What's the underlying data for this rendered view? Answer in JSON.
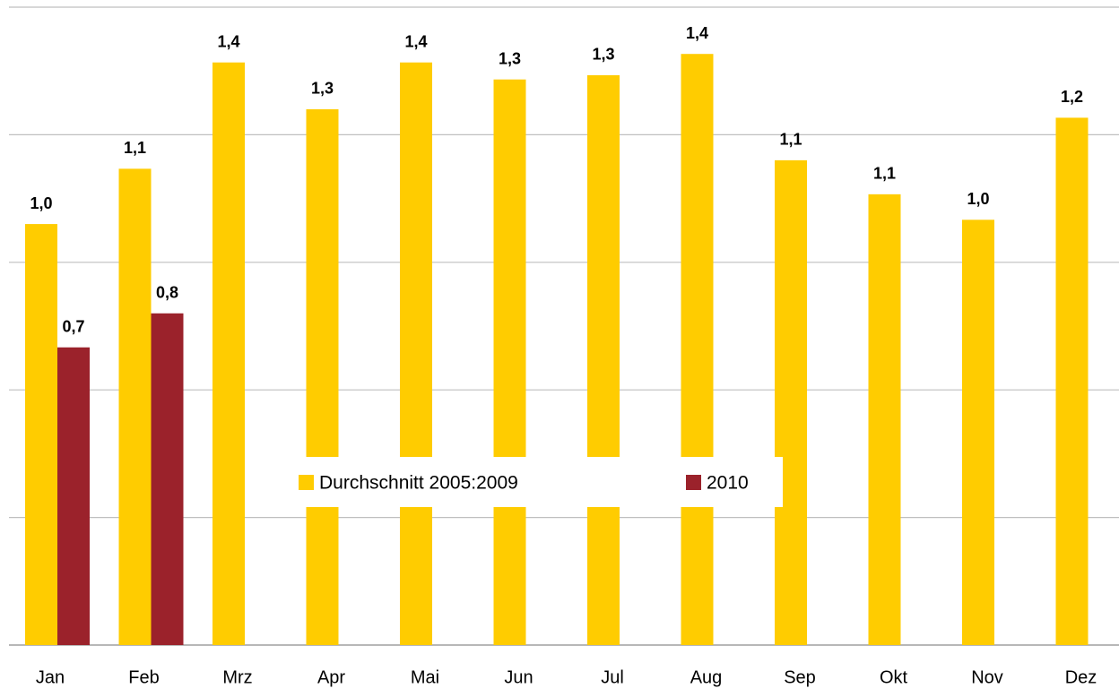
{
  "chart_data": {
    "type": "bar",
    "categories": [
      "Jan",
      "Feb",
      "Mrz",
      "Apr",
      "Mai",
      "Jun",
      "Jul",
      "Aug",
      "Sep",
      "Okt",
      "Nov",
      "Dez"
    ],
    "series": [
      {
        "name": "Durchschnitt 2005:2009",
        "color": "#ffcc00",
        "values": [
          0.99,
          1.12,
          1.37,
          1.26,
          1.37,
          1.33,
          1.34,
          1.39,
          1.14,
          1.06,
          1.0,
          1.24
        ],
        "value_labels": [
          "1,0",
          "1,1",
          "1,4",
          "1,3",
          "1,4",
          "1,3",
          "1,3",
          "1,4",
          "1,1",
          "1,1",
          "1,0",
          "1,2"
        ]
      },
      {
        "name": "2010",
        "color": "#9b222b",
        "values": [
          0.7,
          0.78,
          null,
          null,
          null,
          null,
          null,
          null,
          null,
          null,
          null,
          null
        ],
        "value_labels": [
          "0,7",
          "0,8",
          null,
          null,
          null,
          null,
          null,
          null,
          null,
          null,
          null,
          null
        ]
      }
    ],
    "ylim": [
      0,
      1.5
    ],
    "yticks": [
      0,
      0.3,
      0.6,
      0.9,
      1.2,
      1.5
    ],
    "grid": true,
    "legend": "center"
  }
}
